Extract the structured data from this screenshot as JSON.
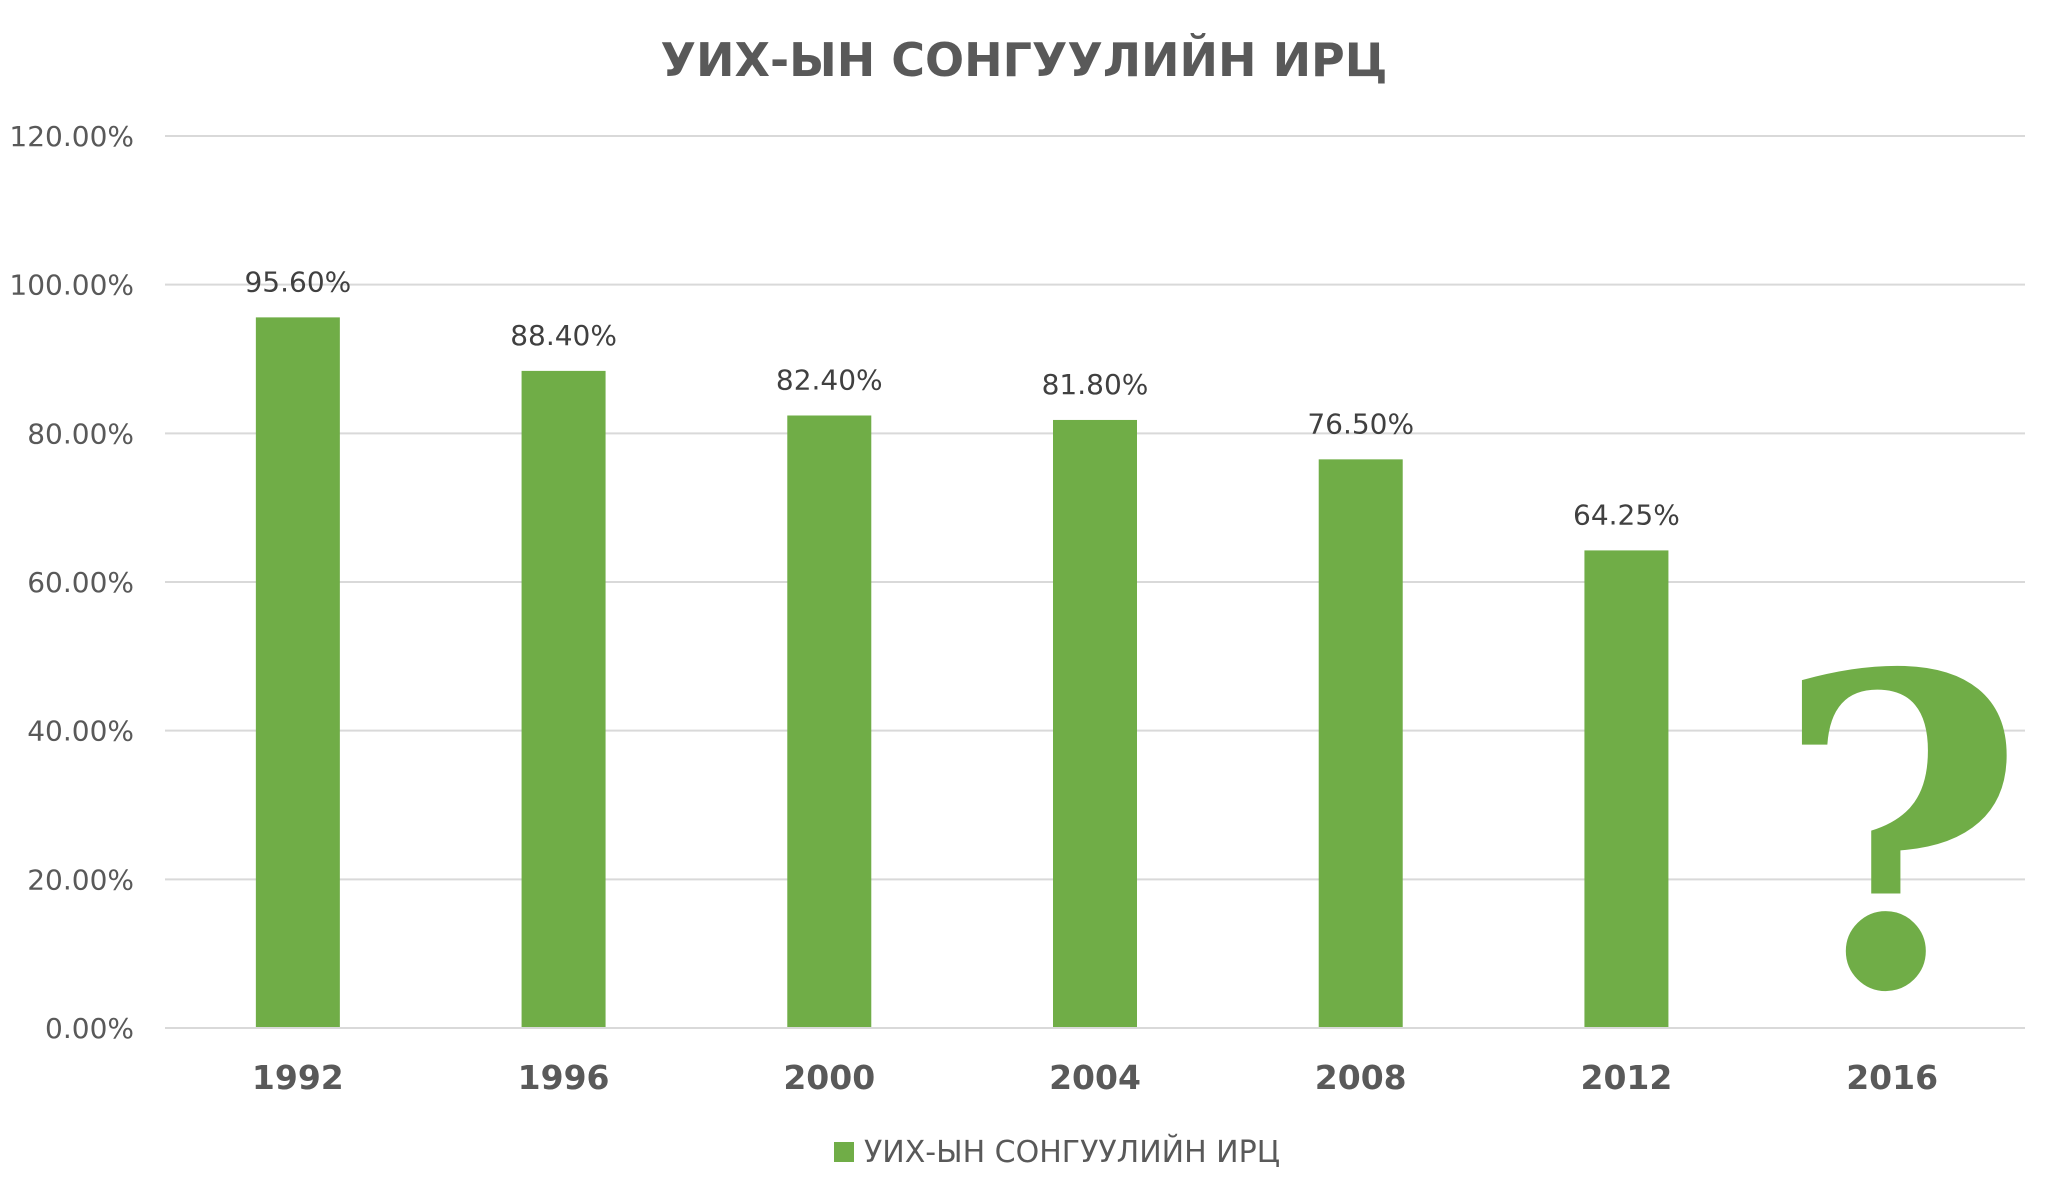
{
  "chart_data": {
    "type": "bar",
    "title": "УИХ-ЫН СОНГУУЛИЙН ИРЦ",
    "categories": [
      "1992",
      "1996",
      "2000",
      "2004",
      "2008",
      "2012",
      "2016"
    ],
    "series": [
      {
        "name": "УИХ-ЫН СОНГУУЛИЙН ИРЦ",
        "values": [
          95.6,
          88.4,
          82.4,
          81.8,
          76.5,
          64.25,
          null
        ],
        "labels": [
          "95.60%",
          "88.40%",
          "82.40%",
          "81.80%",
          "76.50%",
          "64.25%",
          ""
        ]
      }
    ],
    "ylim": [
      0,
      120
    ],
    "yticks": [
      0,
      20,
      40,
      60,
      80,
      100,
      120
    ],
    "ytick_labels": [
      "0.00%",
      "20.00%",
      "40.00%",
      "60.00%",
      "80.00%",
      "100.00%",
      "120.00%"
    ],
    "grid": true,
    "legend": "bottom",
    "annotation": "?",
    "colors": {
      "bar": "#70AD47",
      "grid": "#D9D9D9",
      "text": "#595959"
    }
  }
}
